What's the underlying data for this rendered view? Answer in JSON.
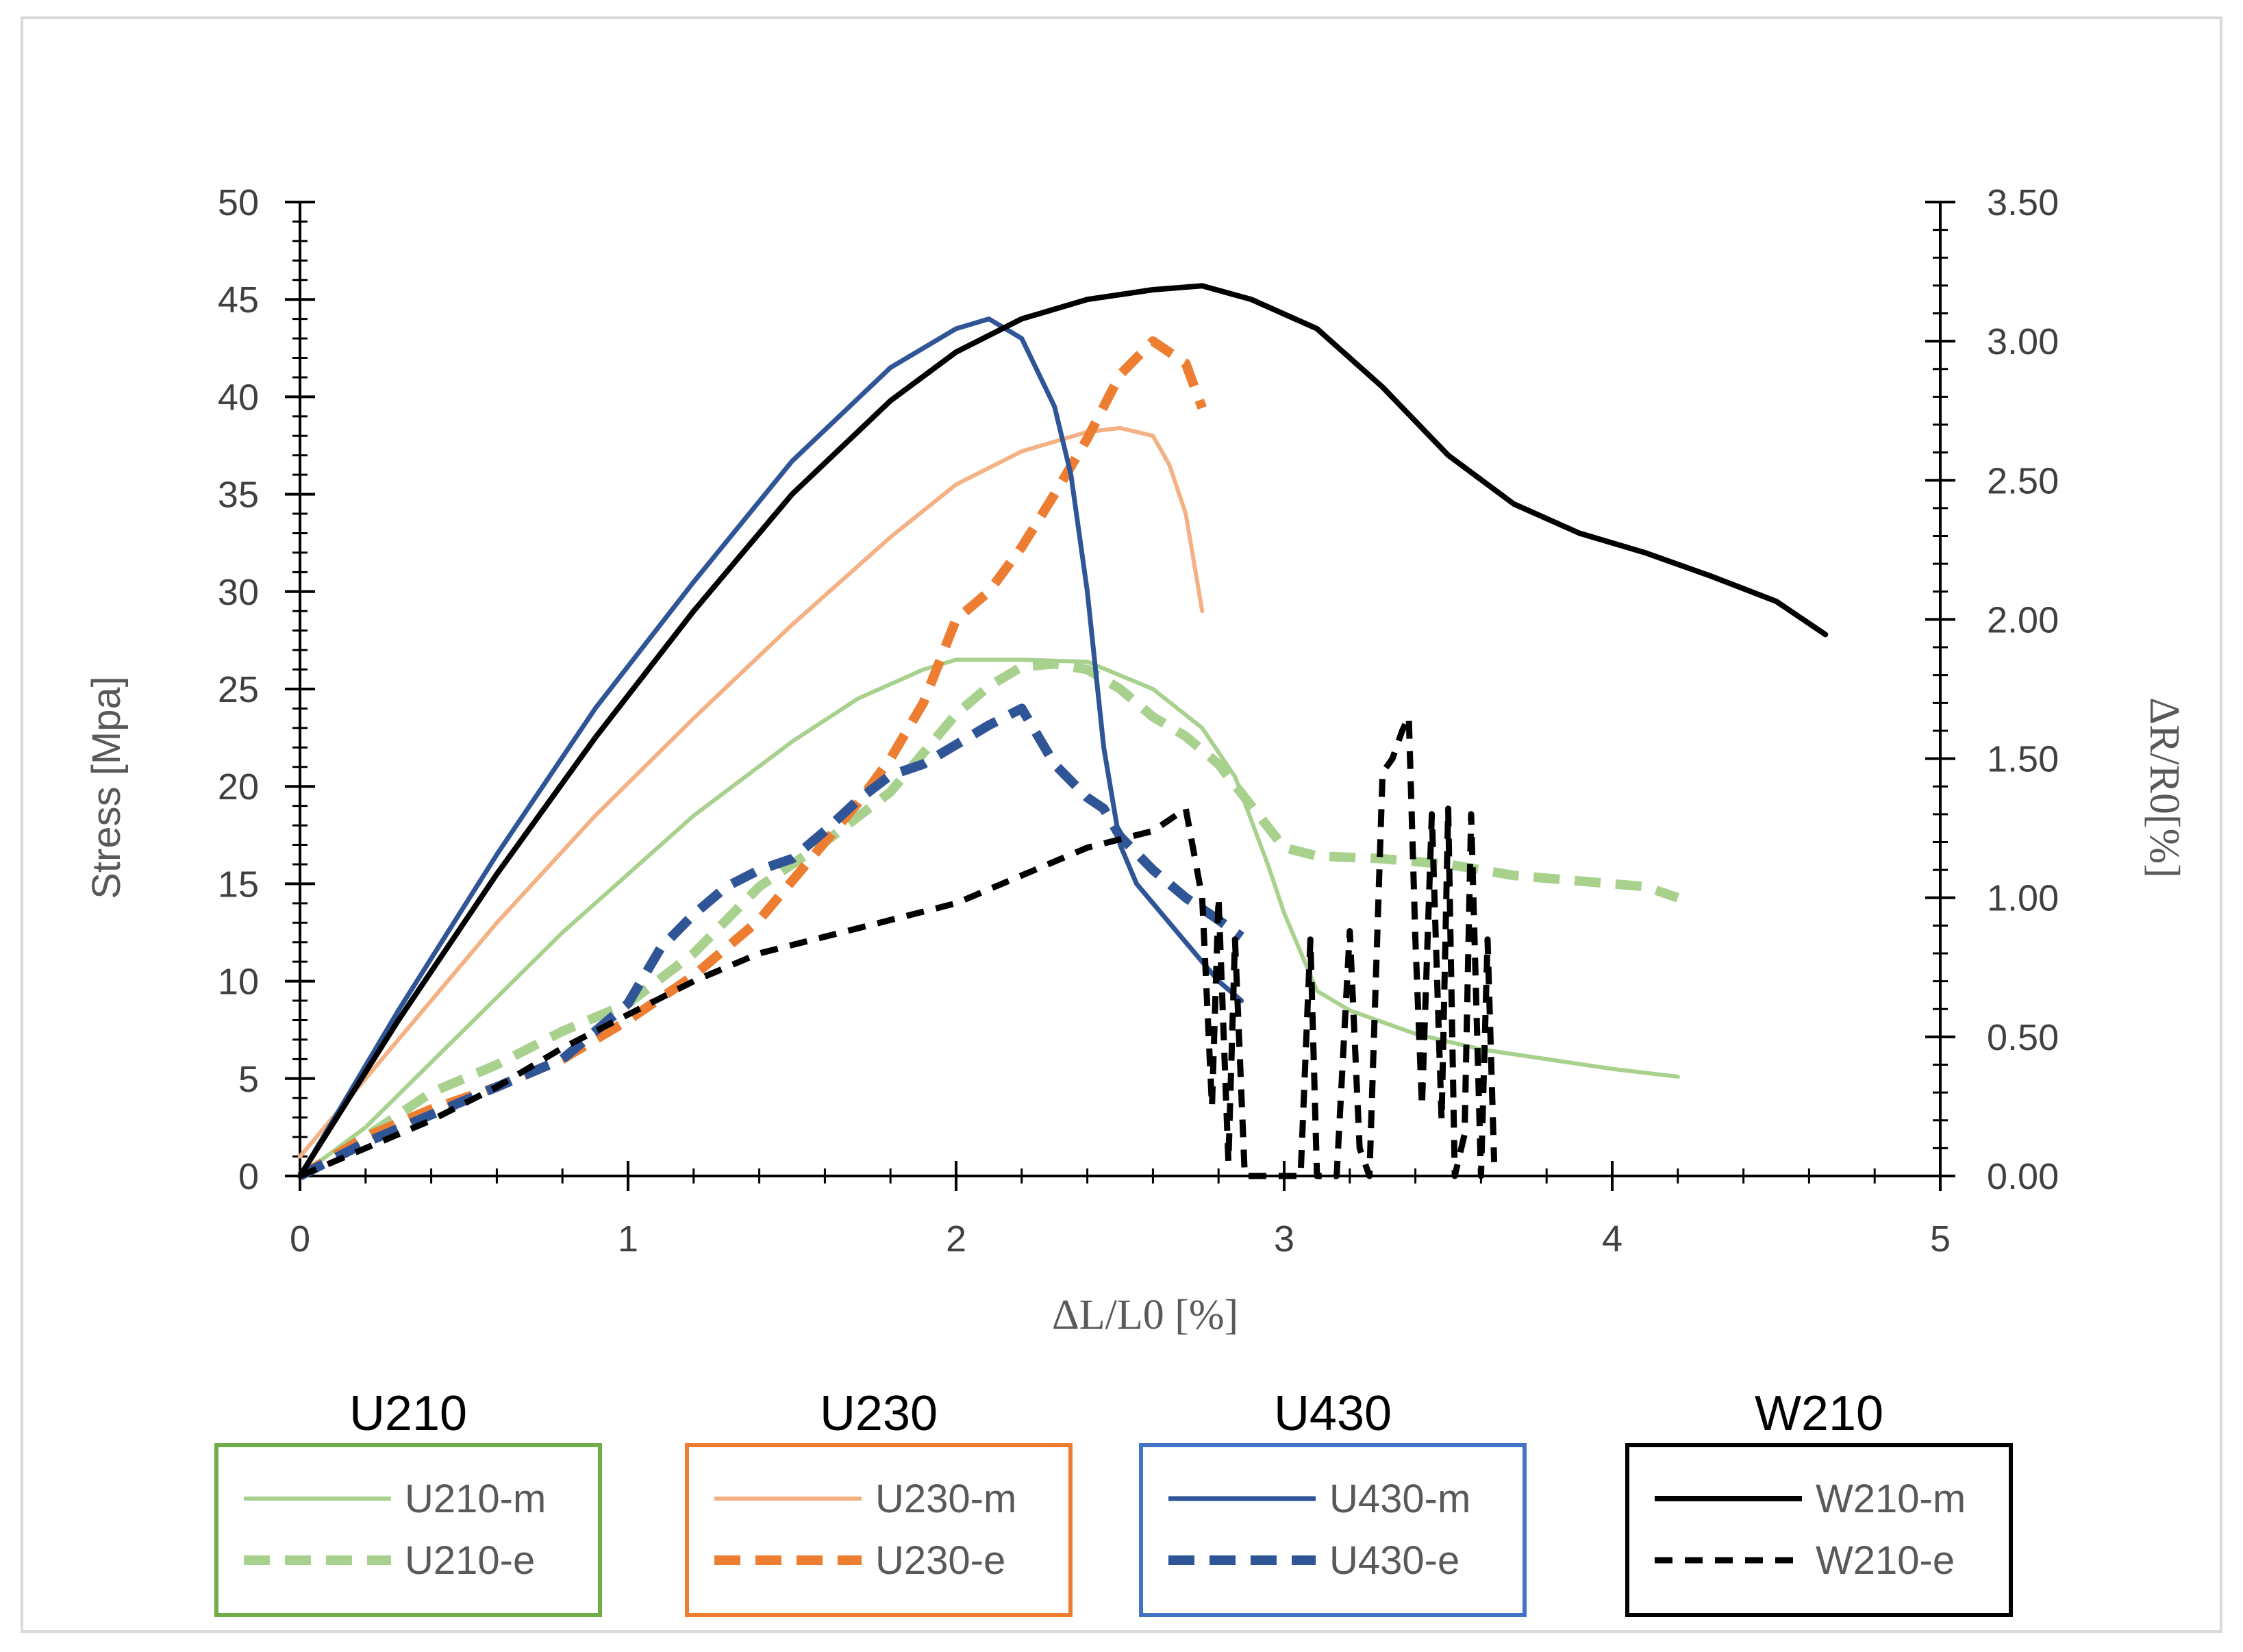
{
  "chart_data": {
    "type": "line",
    "xlabel": "ΔL/L0 [%]",
    "ylabel": "Stress [Mpa]",
    "y2label": "ΔR/R0[%]",
    "xlim": [
      0,
      5
    ],
    "ylim": [
      0,
      50
    ],
    "y2lim": [
      0,
      3.5
    ],
    "x_ticks": [
      "0",
      "1",
      "2",
      "3",
      "4",
      "5"
    ],
    "y_ticks": [
      "0",
      "5",
      "10",
      "15",
      "20",
      "25",
      "30",
      "35",
      "40",
      "45",
      "50"
    ],
    "y2_ticks": [
      "0.00",
      "0.50",
      "1.00",
      "1.50",
      "2.00",
      "2.50",
      "3.00",
      "3.50"
    ],
    "grid": false,
    "colors": {
      "U210": "#a9d18e",
      "U230_m": "#f4b183",
      "U230_e": "#ed7d31",
      "U430": "#2f5597",
      "W210": "#000000",
      "U210_box": "#70ad47",
      "U230_box": "#ed7d31",
      "U430_box": "#4472c4",
      "W210_box": "#000000"
    },
    "legend_groups": [
      {
        "title": "U210",
        "entries": [
          "U210-m",
          "U210-e"
        ]
      },
      {
        "title": "U230",
        "entries": [
          "U230-m",
          "U230-e"
        ]
      },
      {
        "title": "U430",
        "entries": [
          "U430-m",
          "U430-e"
        ]
      },
      {
        "title": "W210",
        "entries": [
          "W210-m",
          "W210-e"
        ]
      }
    ],
    "series": [
      {
        "name": "U210-m",
        "axis": "left",
        "style": "solid",
        "color": "#a9d18e",
        "width": 6,
        "x": [
          0,
          0.2,
          0.5,
          0.8,
          1.0,
          1.2,
          1.5,
          1.7,
          1.9,
          2.0,
          2.2,
          2.4,
          2.6,
          2.75,
          2.85,
          2.95,
          3.0,
          3.1,
          3.2,
          3.4,
          3.6,
          3.8,
          4.0,
          4.2
        ],
        "y": [
          0,
          2.5,
          7.5,
          12.5,
          15.5,
          18.5,
          22.3,
          24.5,
          26,
          26.5,
          26.5,
          26.4,
          25,
          23,
          20.5,
          16,
          13.5,
          9.5,
          8.5,
          7.3,
          6.5,
          6.0,
          5.5,
          5.1
        ]
      },
      {
        "name": "U210-e",
        "axis": "right",
        "style": "dashed",
        "color": "#a9d18e",
        "width": 14,
        "x": [
          0,
          0.2,
          0.4,
          0.6,
          0.8,
          1.0,
          1.2,
          1.4,
          1.6,
          1.8,
          1.9,
          2.0,
          2.1,
          2.2,
          2.3,
          2.4,
          2.5,
          2.6,
          2.7,
          2.8,
          2.9,
          3.0,
          3.1,
          3.3,
          3.5,
          3.7,
          3.9,
          4.1,
          4.2
        ],
        "y": [
          0,
          0.14,
          0.3,
          0.4,
          0.52,
          0.62,
          0.8,
          1.04,
          1.2,
          1.38,
          1.52,
          1.66,
          1.76,
          1.83,
          1.84,
          1.82,
          1.75,
          1.65,
          1.58,
          1.48,
          1.33,
          1.18,
          1.15,
          1.14,
          1.12,
          1.08,
          1.06,
          1.04,
          1.0
        ]
      },
      {
        "name": "U230-m",
        "axis": "left",
        "style": "solid",
        "color": "#f4b183",
        "width": 6,
        "x": [
          0,
          0.3,
          0.6,
          0.9,
          1.2,
          1.5,
          1.8,
          2.0,
          2.2,
          2.4,
          2.5,
          2.6,
          2.65,
          2.7,
          2.73,
          2.75
        ],
        "y": [
          1,
          7,
          13,
          18.5,
          23.5,
          28.3,
          32.8,
          35.5,
          37.2,
          38.2,
          38.4,
          38.0,
          36.5,
          34,
          31,
          29
        ]
      },
      {
        "name": "U230-e",
        "axis": "right",
        "style": "dashed",
        "color": "#ed7d31",
        "width": 14,
        "x": [
          0,
          0.2,
          0.4,
          0.6,
          0.8,
          1.0,
          1.2,
          1.4,
          1.6,
          1.7,
          1.8,
          1.9,
          2.0,
          2.1,
          2.2,
          2.3,
          2.4,
          2.5,
          2.6,
          2.7,
          2.75
        ],
        "y": [
          0,
          0.14,
          0.24,
          0.32,
          0.42,
          0.56,
          0.72,
          0.92,
          1.2,
          1.34,
          1.5,
          1.7,
          2.0,
          2.1,
          2.26,
          2.45,
          2.65,
          2.88,
          3.0,
          2.92,
          2.76
        ]
      },
      {
        "name": "U430-m",
        "axis": "left",
        "style": "solid",
        "color": "#2f5597",
        "width": 7,
        "x": [
          0,
          0.3,
          0.6,
          0.9,
          1.2,
          1.5,
          1.8,
          2.0,
          2.1,
          2.2,
          2.3,
          2.35,
          2.4,
          2.45,
          2.5,
          2.55,
          2.6,
          2.7,
          2.8,
          2.87
        ],
        "y": [
          0,
          8.5,
          16.5,
          24,
          30.5,
          36.7,
          41.5,
          43.5,
          44,
          43,
          39.5,
          36,
          30,
          22,
          17,
          15,
          14,
          12,
          10,
          9
        ]
      },
      {
        "name": "U430-e",
        "axis": "right",
        "style": "dashed",
        "color": "#2f5597",
        "width": 14,
        "x": [
          0,
          0.2,
          0.4,
          0.6,
          0.8,
          1.0,
          1.1,
          1.2,
          1.3,
          1.4,
          1.5,
          1.6,
          1.7,
          1.8,
          1.9,
          2.0,
          2.1,
          2.2,
          2.3,
          2.4,
          2.45,
          2.5,
          2.6,
          2.7,
          2.8,
          2.87
        ],
        "y": [
          0,
          0.12,
          0.22,
          0.32,
          0.42,
          0.62,
          0.82,
          0.94,
          1.04,
          1.1,
          1.14,
          1.24,
          1.35,
          1.44,
          1.48,
          1.55,
          1.62,
          1.68,
          1.48,
          1.36,
          1.32,
          1.22,
          1.1,
          1.0,
          0.92,
          0.86
        ]
      },
      {
        "name": "W210-m",
        "axis": "left",
        "style": "solid",
        "color": "#000000",
        "width": 8,
        "x": [
          0,
          0.3,
          0.6,
          0.9,
          1.2,
          1.5,
          1.8,
          2.0,
          2.2,
          2.4,
          2.6,
          2.75,
          2.9,
          3.1,
          3.3,
          3.5,
          3.7,
          3.9,
          4.1,
          4.3,
          4.5,
          4.65
        ],
        "y": [
          0,
          8,
          15.5,
          22.5,
          29,
          35,
          39.8,
          42.3,
          44,
          45,
          45.5,
          45.7,
          45,
          43.5,
          40.5,
          37,
          34.5,
          33,
          32,
          30.8,
          29.5,
          27.8
        ]
      },
      {
        "name": "W210-e",
        "axis": "right",
        "style": "dashed",
        "color": "#000000",
        "width": 9,
        "x": [
          0,
          0.2,
          0.4,
          0.6,
          0.8,
          1.0,
          1.2,
          1.4,
          1.6,
          1.8,
          2.0,
          2.2,
          2.4,
          2.6,
          2.65,
          2.7,
          2.75,
          2.78,
          2.8,
          2.83,
          2.85,
          2.88,
          2.9,
          3.0,
          3.05,
          3.08,
          3.1,
          3.12,
          3.16,
          3.2,
          3.23,
          3.26,
          3.3,
          3.33,
          3.36,
          3.38,
          3.4,
          3.42,
          3.45,
          3.48,
          3.5,
          3.52,
          3.55,
          3.57,
          3.6,
          3.62,
          3.64
        ],
        "y": [
          0,
          0.1,
          0.2,
          0.32,
          0.46,
          0.58,
          0.7,
          0.8,
          0.86,
          0.92,
          0.98,
          1.08,
          1.18,
          1.24,
          1.28,
          1.32,
          1.0,
          0.25,
          1.0,
          0.05,
          0.85,
          0.0,
          0.0,
          0.0,
          0.0,
          0.85,
          0.0,
          0.0,
          0.0,
          0.88,
          0.1,
          0.0,
          1.45,
          1.5,
          1.6,
          1.65,
          0.85,
          0.25,
          1.3,
          0.2,
          1.32,
          0.0,
          0.15,
          1.3,
          0.0,
          0.85,
          0.05
        ]
      }
    ]
  }
}
